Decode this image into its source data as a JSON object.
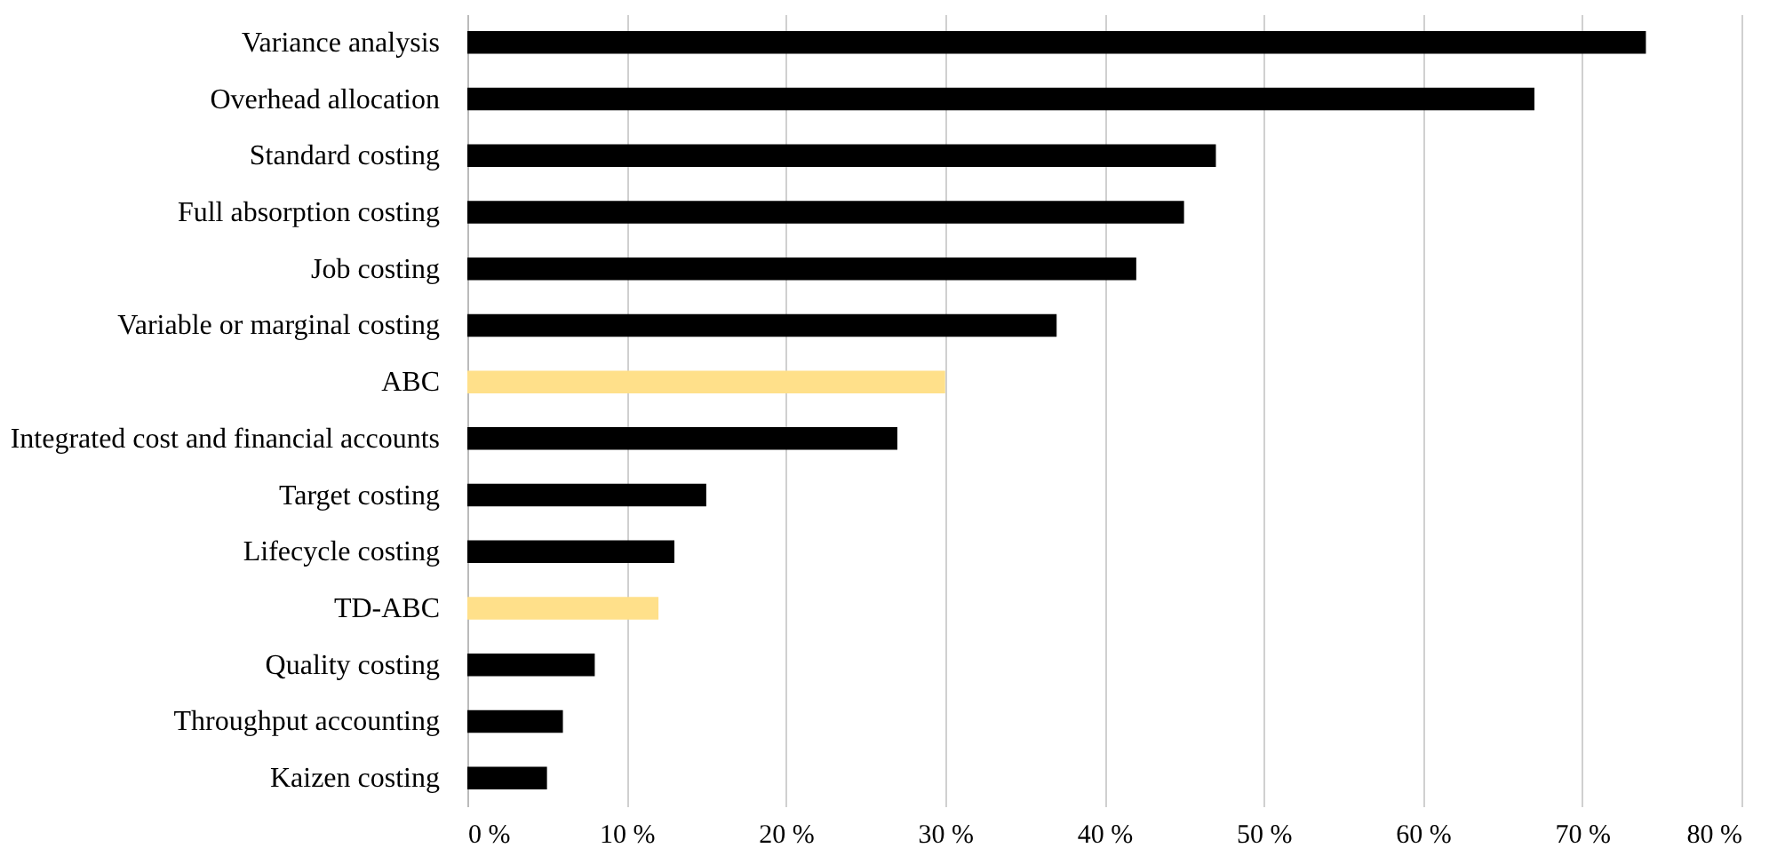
{
  "chart_data": {
    "type": "bar",
    "orientation": "horizontal",
    "categories": [
      "Variance analysis",
      "Overhead allocation",
      "Standard costing",
      "Full absorption costing",
      "Job costing",
      "Variable or marginal costing",
      "ABC",
      "Integrated cost and financial accounts",
      "Target costing",
      "Lifecycle costing",
      "TD-ABC",
      "Quality costing",
      "Throughput accounting",
      "Kaizen costing"
    ],
    "values": [
      74,
      67,
      47,
      45,
      42,
      37,
      30,
      27,
      15,
      13,
      12,
      8,
      6,
      5
    ],
    "colors": [
      "#000000",
      "#000000",
      "#000000",
      "#000000",
      "#000000",
      "#000000",
      "#ffe08a",
      "#000000",
      "#000000",
      "#000000",
      "#ffe08a",
      "#000000",
      "#000000",
      "#000000"
    ],
    "xlim": [
      0,
      80
    ],
    "xticks": [
      {
        "value": 0,
        "label": "0 %"
      },
      {
        "value": 10,
        "label": "10 %"
      },
      {
        "value": 20,
        "label": "20 %"
      },
      {
        "value": 30,
        "label": "30 %"
      },
      {
        "value": 40,
        "label": "40 %"
      },
      {
        "value": 50,
        "label": "50 %"
      },
      {
        "value": 60,
        "label": "60 %"
      },
      {
        "value": 70,
        "label": "70 %"
      },
      {
        "value": 80,
        "label": "80 %"
      }
    ],
    "grid": "x"
  }
}
